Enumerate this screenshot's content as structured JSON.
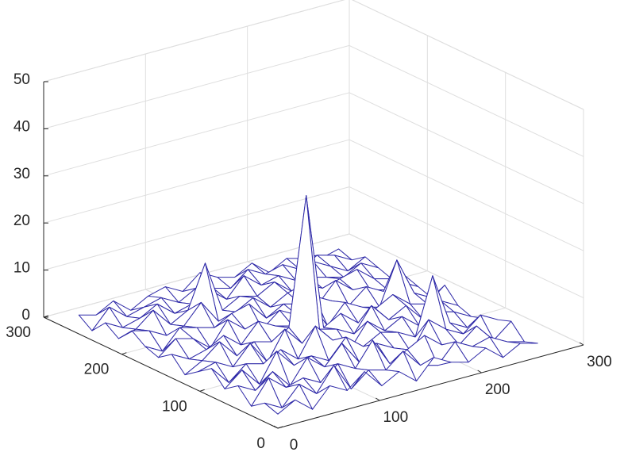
{
  "chart_data": {
    "type": "mesh",
    "x": [
      0,
      17,
      34,
      51,
      68,
      85,
      102,
      119,
      136,
      153,
      170,
      187,
      204,
      221,
      238,
      255
    ],
    "y": [
      0,
      17,
      34,
      51,
      68,
      85,
      102,
      119,
      136,
      153,
      170,
      187,
      204,
      221,
      238,
      255
    ],
    "z": [
      [
        3,
        5,
        2,
        6,
        4,
        7,
        3,
        5,
        2,
        6,
        4,
        3,
        5,
        2,
        4,
        3
      ],
      [
        4,
        2,
        6,
        3,
        8,
        2,
        5,
        4,
        7,
        3,
        2,
        6,
        4,
        5,
        3,
        2
      ],
      [
        2,
        7,
        4,
        5,
        3,
        6,
        4,
        9,
        3,
        5,
        7,
        4,
        3,
        6,
        2,
        5
      ],
      [
        5,
        3,
        6,
        2,
        7,
        4,
        8,
        3,
        6,
        4,
        2,
        8,
        5,
        3,
        6,
        4
      ],
      [
        3,
        6,
        2,
        8,
        4,
        5,
        3,
        7,
        4,
        6,
        5,
        3,
        15,
        4,
        2,
        3
      ],
      [
        6,
        2,
        5,
        4,
        6,
        3,
        9,
        5,
        2,
        7,
        4,
        6,
        3,
        5,
        4,
        2
      ],
      [
        4,
        5,
        3,
        7,
        2,
        8,
        4,
        6,
        5,
        3,
        8,
        4,
        6,
        2,
        5,
        3
      ],
      [
        2,
        4,
        7,
        3,
        5,
        4,
        6,
        33,
        4,
        6,
        3,
        5,
        7,
        4,
        3,
        6
      ],
      [
        5,
        3,
        4,
        6,
        3,
        7,
        5,
        4,
        8,
        2,
        6,
        4,
        3,
        12,
        4,
        2
      ],
      [
        3,
        6,
        5,
        2,
        7,
        4,
        3,
        6,
        4,
        7,
        5,
        3,
        6,
        4,
        5,
        3
      ],
      [
        4,
        2,
        6,
        5,
        4,
        6,
        7,
        3,
        5,
        4,
        3,
        7,
        4,
        3,
        2,
        4
      ],
      [
        6,
        5,
        3,
        4,
        8,
        3,
        4,
        6,
        3,
        5,
        6,
        4,
        5,
        6,
        3,
        2
      ],
      [
        3,
        4,
        7,
        3,
        5,
        14,
        3,
        5,
        4,
        6,
        3,
        5,
        4,
        3,
        5,
        3
      ],
      [
        5,
        3,
        4,
        6,
        3,
        4,
        6,
        3,
        7,
        4,
        5,
        3,
        6,
        4,
        2,
        4
      ],
      [
        2,
        6,
        3,
        4,
        5,
        3,
        5,
        4,
        3,
        6,
        4,
        5,
        3,
        5,
        4,
        2
      ],
      [
        4,
        3,
        5,
        2,
        4,
        5,
        3,
        6,
        4,
        3,
        5,
        2,
        4,
        3,
        2,
        3
      ]
    ],
    "color": "#2f2aa8",
    "xlim": [
      0,
      300
    ],
    "ylim": [
      0,
      300
    ],
    "zlim": [
      0,
      50
    ],
    "xticks": [
      0,
      100,
      200,
      300
    ],
    "yticks": [
      0,
      100,
      200,
      300
    ],
    "zticks": [
      0,
      10,
      20,
      30,
      40,
      50
    ],
    "grid": true
  }
}
